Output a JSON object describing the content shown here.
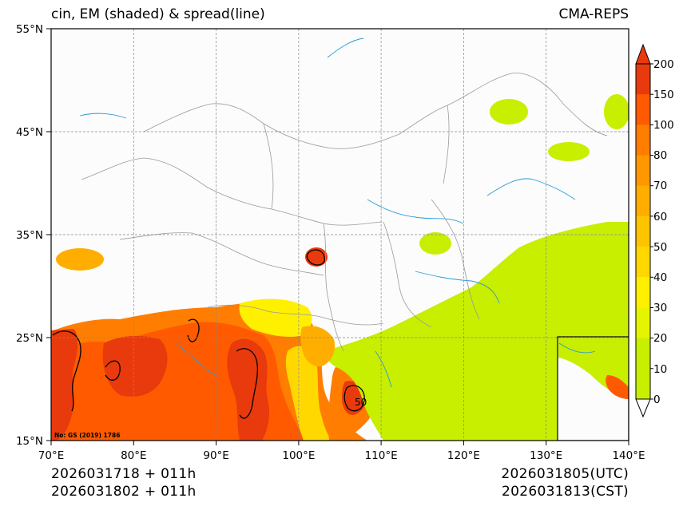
{
  "title": {
    "left": "cin, EM (shaded) & spread(line)",
    "right": "CMA-REPS"
  },
  "axes": {
    "lat_labels": [
      "55°N",
      "45°N",
      "35°N",
      "25°N",
      "15°N"
    ],
    "lon_labels": [
      "70°E",
      "80°E",
      "90°E",
      "100°E",
      "110°E",
      "120°E",
      "130°E",
      "140°E"
    ]
  },
  "colorbar": {
    "labels": [
      "200",
      "150",
      "100",
      "80",
      "70",
      "60",
      "50",
      "40",
      "30",
      "20",
      "10",
      "0"
    ],
    "colors": [
      "#e83a0c",
      "#ff5a00",
      "#ff7d00",
      "#ff9800",
      "#ffae00",
      "#ffc400",
      "#ffd800",
      "#fff000",
      "#e6f400",
      "#c8ee00"
    ],
    "extend_top_color": "#e83a0c",
    "extend_bottom_color": "#ffffff"
  },
  "map": {
    "background": "#fcfcfc",
    "grid_color": "#888888",
    "river_color": "#2a9ad8",
    "border_color": "#9a9a9a",
    "contour_label": "50",
    "watermark": "No: GS (2019) 1786"
  },
  "footer": {
    "init_utc": "2026031718  +  011h",
    "init_cst": "2026031802  +  011h",
    "valid_utc": "2026031805(UTC)",
    "valid_cst": "2026031813(CST)"
  }
}
